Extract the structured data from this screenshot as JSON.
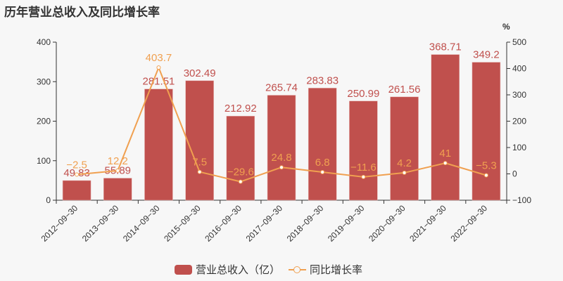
{
  "title": "历年营业总收入及同比增长率",
  "colors": {
    "bar": "#c0504d",
    "line": "#f0a050",
    "axis": "#333333",
    "background": "#f7f7f7"
  },
  "legend": {
    "bar_label": "营业总收入（亿）",
    "line_label": "同比增长率"
  },
  "right_axis_unit": "%",
  "chart_data": {
    "type": "bar+line",
    "title": "历年营业总收入及同比增长率",
    "categories": [
      "2012-09-30",
      "2013-09-30",
      "2014-09-30",
      "2015-09-30",
      "2016-09-30",
      "2017-09-30",
      "2018-09-30",
      "2019-09-30",
      "2020-09-30",
      "2021-09-30",
      "2022-09-30"
    ],
    "series": [
      {
        "name": "营业总收入（亿）",
        "type": "bar",
        "axis": "left",
        "values": [
          49.83,
          55.89,
          281.51,
          302.49,
          212.92,
          265.74,
          283.83,
          250.99,
          261.56,
          368.71,
          349.2
        ]
      },
      {
        "name": "同比增长率",
        "type": "line",
        "axis": "right",
        "values": [
          -2.5,
          12.2,
          403.7,
          7.5,
          -29.6,
          24.8,
          6.8,
          -11.6,
          4.2,
          41,
          -5.3
        ]
      }
    ],
    "left_axis": {
      "ticks": [
        0,
        100,
        200,
        300,
        400
      ],
      "ylim": [
        0,
        400
      ]
    },
    "right_axis": {
      "label": "%",
      "ticks": [
        -100,
        0,
        100,
        200,
        300,
        400,
        500
      ],
      "ylim": [
        -100,
        500
      ]
    },
    "grid": false,
    "legend_position": "bottom"
  }
}
